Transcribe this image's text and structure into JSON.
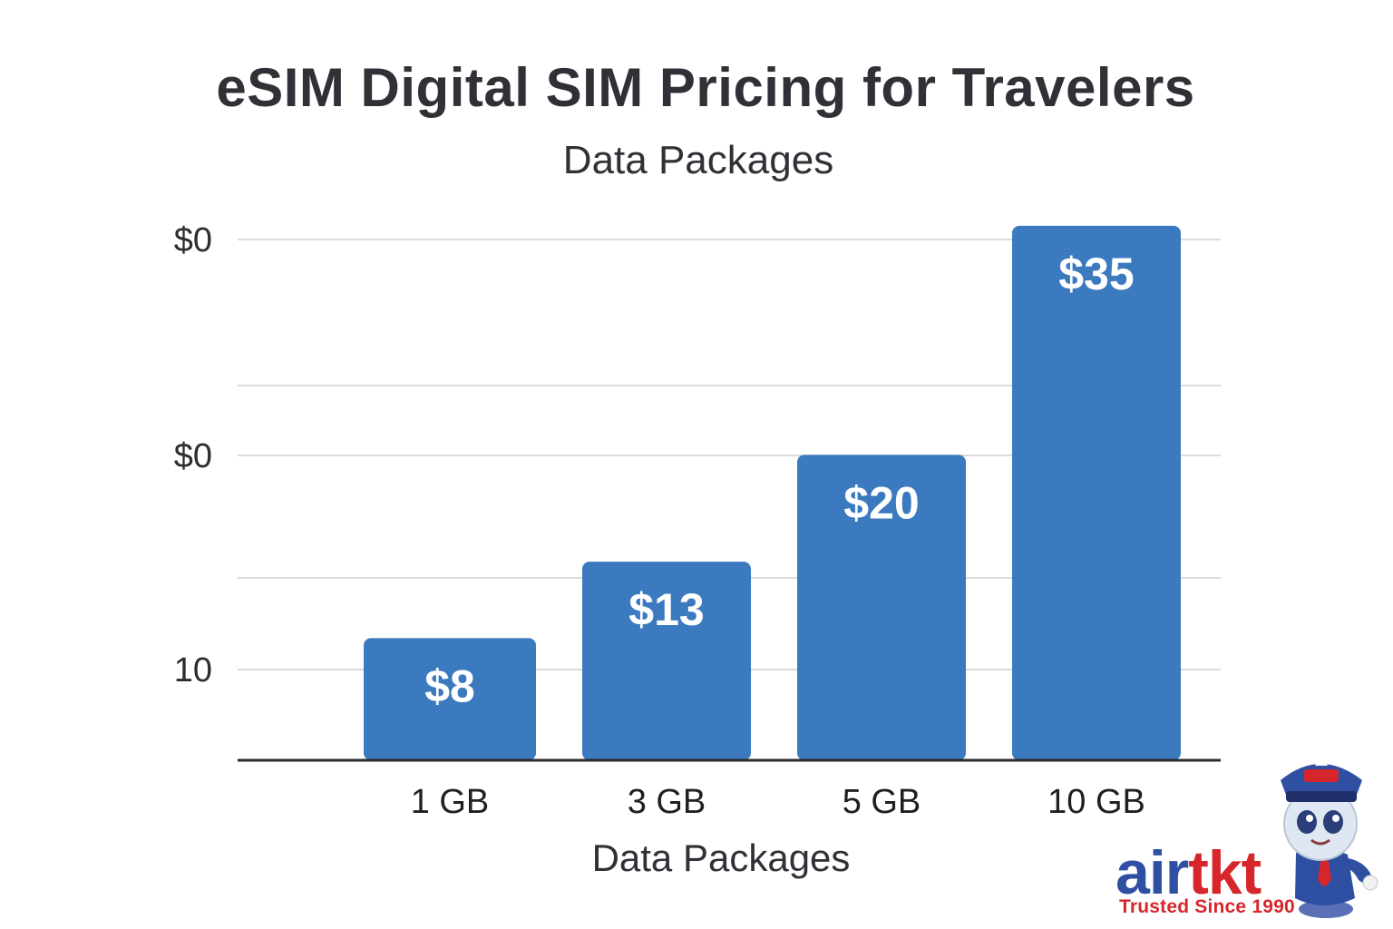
{
  "chart_data": {
    "type": "bar",
    "title": "eSIM Digital SIM Pricing for Travelers",
    "subtitle": "Data Packages",
    "xlabel": "Data Packages",
    "ylabel": "",
    "categories": [
      "1 GB",
      "3 GB",
      "5 GB",
      "10 GB"
    ],
    "values": [
      8,
      13,
      20,
      35
    ],
    "data_labels": [
      "$8",
      "$13",
      "$20",
      "$35"
    ],
    "y_tick_labels": [
      "10",
      "$0",
      "$0"
    ],
    "ylim": [
      0,
      36
    ],
    "grid": true,
    "bar_color": "#3b7abf",
    "legend": "none"
  },
  "logo": {
    "text_air": "air",
    "text_tkt": "tkt",
    "tagline": "Trusted Since 1990",
    "icon": "pilot-mascot-icon",
    "colors": {
      "blue": "#2f4fa3",
      "red": "#d6262b"
    }
  }
}
